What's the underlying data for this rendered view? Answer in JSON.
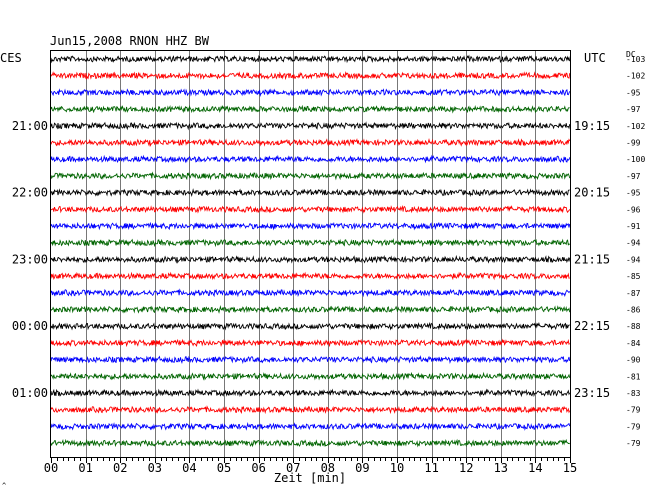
{
  "title": "Jun15,2008   RNON HHZ BW",
  "left_axis_label": "CES",
  "right_axis_label": "UTC",
  "dc_label": "DC",
  "xlabel": "Zeit [min]",
  "corner_mark": "^",
  "colors": {
    "trace_cycle": [
      "#000000",
      "#ff0000",
      "#0000ff",
      "#006400"
    ],
    "grid": "#000000",
    "text": "#000000",
    "background": "#ffffff"
  },
  "chart_data": {
    "type": "line",
    "title": "Jun15,2008   RNON HHZ BW",
    "xlabel": "Zeit [min]",
    "ylabel": "",
    "xlim": [
      0,
      15
    ],
    "x_ticks": [
      "00",
      "01",
      "02",
      "03",
      "04",
      "05",
      "06",
      "07",
      "08",
      "09",
      "10",
      "11",
      "12",
      "13",
      "14",
      "15"
    ],
    "grid": true,
    "row_count": 24,
    "left_time_labels": [
      {
        "row": 4,
        "label": "21:00"
      },
      {
        "row": 8,
        "label": "22:00"
      },
      {
        "row": 12,
        "label": "23:00"
      },
      {
        "row": 16,
        "label": "00:00"
      },
      {
        "row": 20,
        "label": "01:00"
      }
    ],
    "right_time_labels": [
      {
        "row": 4,
        "label": "19:15"
      },
      {
        "row": 8,
        "label": "20:15"
      },
      {
        "row": 12,
        "label": "21:15"
      },
      {
        "row": 16,
        "label": "22:15"
      },
      {
        "row": 20,
        "label": "23:15"
      }
    ],
    "dc_offsets": [
      "-103",
      "-102",
      "-95",
      "-97",
      "-102",
      "-99",
      "-100",
      "-97",
      "-95",
      "-96",
      "-91",
      "-94",
      "-94",
      "-85",
      "-87",
      "-86",
      "-88",
      "-84",
      "-90",
      "-81",
      "-83",
      "-79",
      "-79",
      "-79"
    ]
  }
}
